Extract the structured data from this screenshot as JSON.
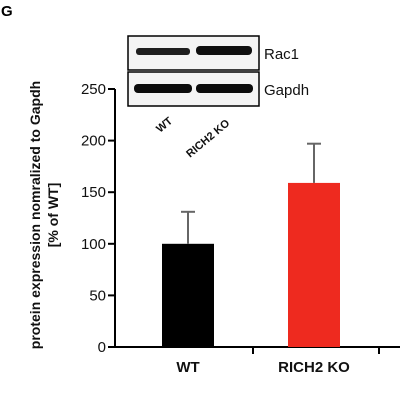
{
  "panel_letter": "G",
  "colors": {
    "wt": "#000000",
    "rich2_ko": "#ee2a1f",
    "error": "#666666",
    "axis": "#000000"
  },
  "blot": {
    "bands": [
      "Rac1",
      "Gapdh"
    ],
    "lanes": [
      "WT",
      "RICH2 KO"
    ]
  },
  "chart_data": {
    "type": "bar",
    "categories": [
      "WT",
      "RICH2 KO"
    ],
    "values": [
      100,
      159
    ],
    "errors": [
      31,
      38
    ],
    "ylabel_line1": "protein expression nomralized to Gapdh",
    "ylabel_line2": "[% of WT]",
    "ylim": [
      0,
      250
    ],
    "yticks": [
      0,
      50,
      100,
      150,
      200,
      250
    ],
    "colors": [
      "#000000",
      "#ee2a1f"
    ]
  }
}
